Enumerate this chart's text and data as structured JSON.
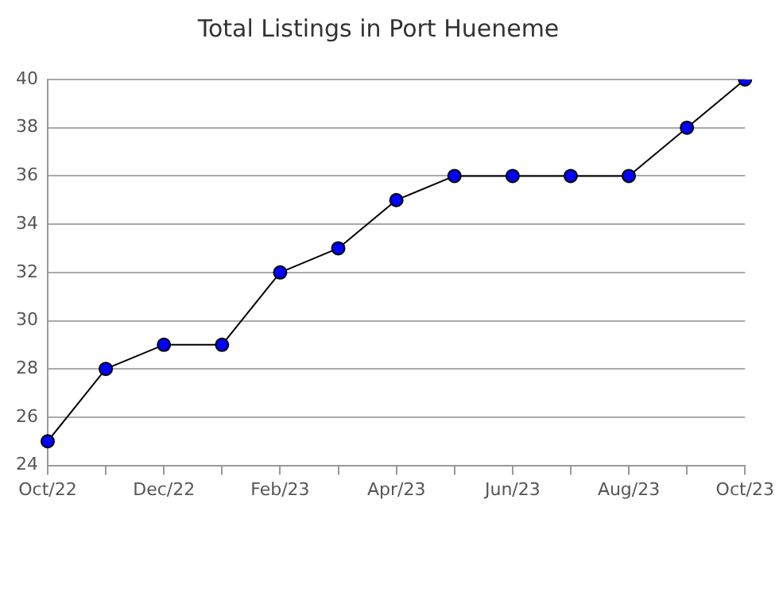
{
  "chart_data": {
    "type": "line",
    "title": "Total Listings in Port Hueneme",
    "categories": [
      "Oct/22",
      null,
      "Dec/22",
      null,
      "Feb/23",
      null,
      "Apr/23",
      null,
      "Jun/23",
      null,
      "Aug/23",
      null,
      "Oct/23"
    ],
    "series": [
      {
        "color": "#0000ff",
        "values": [
          25,
          28,
          29,
          29,
          32,
          33,
          35,
          36,
          36,
          36,
          36,
          38,
          40
        ]
      }
    ],
    "ylim": [
      24,
      40
    ],
    "yticks": [
      24,
      26,
      28,
      30,
      32,
      34,
      36,
      38,
      40
    ],
    "grid": "y",
    "legend": false,
    "marker": "circle",
    "line_style": "solid"
  }
}
